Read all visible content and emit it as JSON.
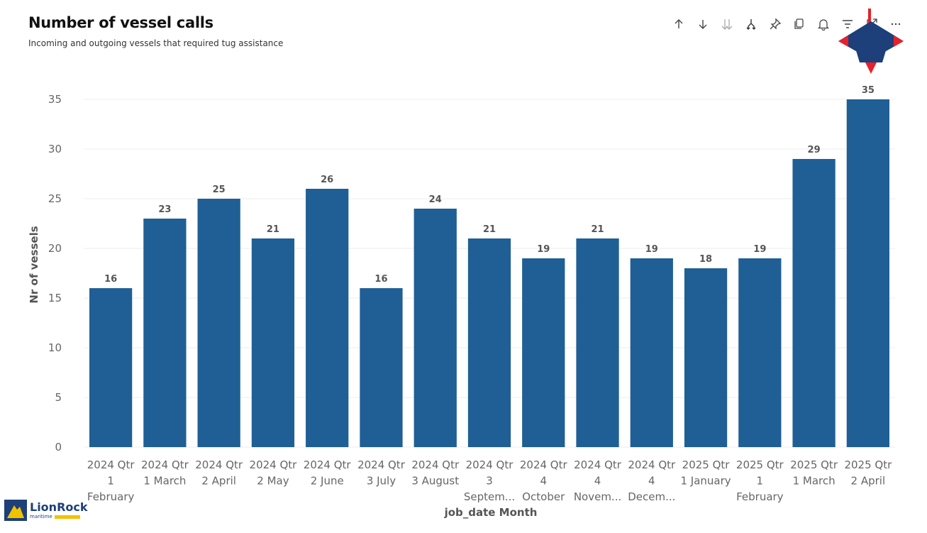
{
  "header": {
    "title": "Number of vessel calls",
    "subtitle": "Incoming and outgoing vessels that required tug assistance"
  },
  "toolbar": {
    "icons": [
      "arrow-up-icon",
      "arrow-down-icon",
      "double-arrow-down-icon",
      "drill-fork-icon",
      "pin-icon",
      "copy-icon",
      "bell-icon",
      "filter-icon",
      "focus-mode-icon",
      "more-options-icon"
    ]
  },
  "logo": {
    "name": "LionRock",
    "sub": "maritime"
  },
  "colors": {
    "bar": "#1f5f95",
    "grid": "#ececec",
    "star": "#1d3f7a",
    "star_points": "#e8202a"
  },
  "chart_data": {
    "type": "bar",
    "xlabel": "job_date Month",
    "ylabel": "Nr of vessels",
    "ylim": [
      0,
      35
    ],
    "yticks": [
      0,
      5,
      10,
      15,
      20,
      25,
      30,
      35
    ],
    "grid": true,
    "categories": [
      [
        "2024 Qtr",
        "1",
        "February"
      ],
      [
        "2024 Qtr",
        "1 March"
      ],
      [
        "2024 Qtr",
        "2 April"
      ],
      [
        "2024 Qtr",
        "2 May"
      ],
      [
        "2024 Qtr",
        "2 June"
      ],
      [
        "2024 Qtr",
        "3 July"
      ],
      [
        "2024 Qtr",
        "3 August"
      ],
      [
        "2024 Qtr",
        "3",
        "Septem..."
      ],
      [
        "2024 Qtr",
        "4",
        "October"
      ],
      [
        "2024 Qtr",
        "4",
        "Novem..."
      ],
      [
        "2024 Qtr",
        "4",
        "Decem..."
      ],
      [
        "2025 Qtr",
        "1 January"
      ],
      [
        "2025 Qtr",
        "1",
        "February"
      ],
      [
        "2025 Qtr",
        "1 March"
      ],
      [
        "2025 Qtr",
        "2 April"
      ]
    ],
    "values": [
      16,
      23,
      25,
      21,
      26,
      16,
      24,
      21,
      19,
      21,
      19,
      18,
      19,
      29,
      35
    ]
  }
}
